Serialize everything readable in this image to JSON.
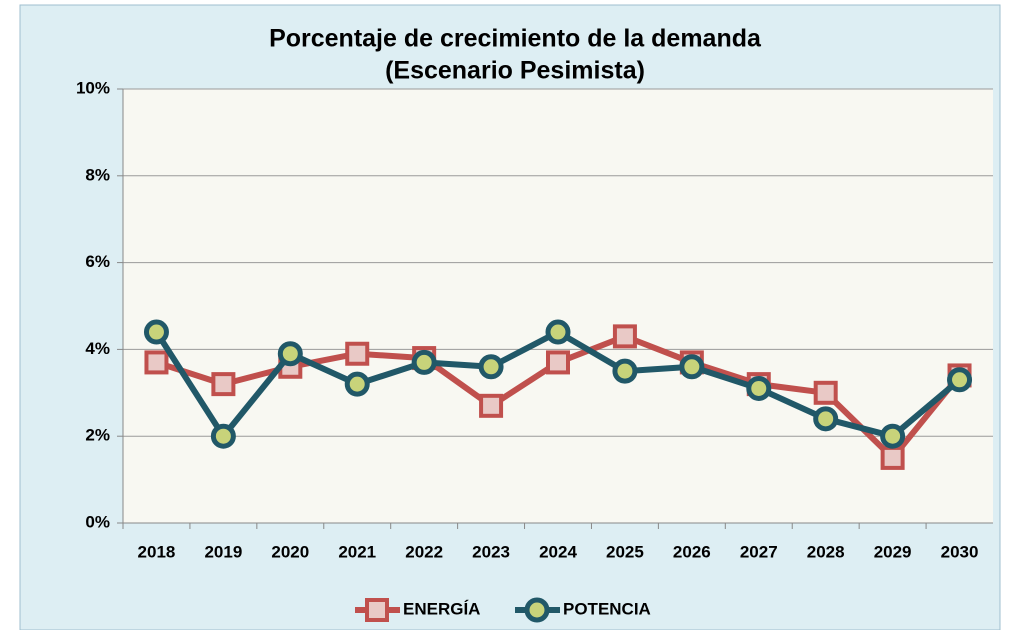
{
  "chart_data": {
    "type": "line",
    "title": "Porcentaje de crecimiento de la demanda",
    "subtitle": "(Escenario Pesimista)",
    "categories": [
      "2018",
      "2019",
      "2020",
      "2021",
      "2022",
      "2023",
      "2024",
      "2025",
      "2026",
      "2027",
      "2028",
      "2029",
      "2030"
    ],
    "series": [
      {
        "name": "ENERGÍA",
        "color": "#c0504d",
        "values": [
          3.7,
          3.2,
          3.6,
          3.9,
          3.8,
          2.7,
          3.7,
          4.3,
          3.7,
          3.2,
          3.0,
          1.5,
          3.4
        ]
      },
      {
        "name": "POTENCIA",
        "color": "#215868",
        "values": [
          4.4,
          2.0,
          3.9,
          3.2,
          3.7,
          3.6,
          4.4,
          3.5,
          3.6,
          3.1,
          2.4,
          2.0,
          3.3
        ]
      }
    ],
    "ylim": [
      0,
      10
    ],
    "yticks": [
      {
        "value": 0,
        "label": "0%"
      },
      {
        "value": 2,
        "label": "2%"
      },
      {
        "value": 4,
        "label": "4%"
      },
      {
        "value": 6,
        "label": "6%"
      },
      {
        "value": 8,
        "label": "8%"
      },
      {
        "value": 10,
        "label": "10%"
      }
    ],
    "grid": true,
    "legend": "bottom"
  }
}
